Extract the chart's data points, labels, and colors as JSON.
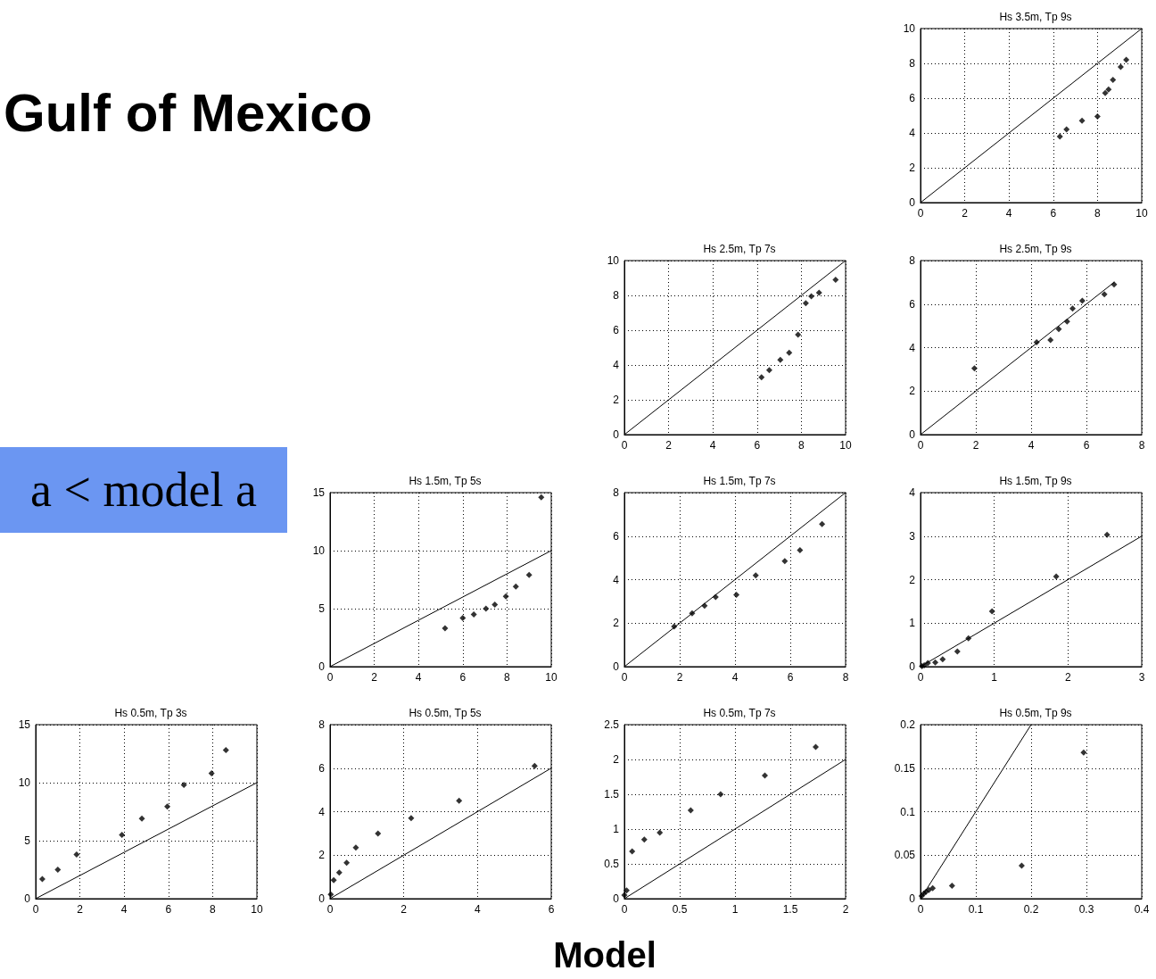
{
  "chart_data": [
    {
      "type": "other",
      "title": "Gulf of Mexico",
      "annotations": [
        "a < model a",
        "Model"
      ]
    },
    {
      "type": "scatter",
      "title": "Hs 3.5m, Tp 9s",
      "xlim": [
        0,
        10
      ],
      "ylim": [
        0,
        10
      ],
      "xticks": [
        0,
        2,
        4,
        6,
        8,
        10
      ],
      "yticks": [
        0,
        2,
        4,
        6,
        8,
        10
      ],
      "grid": true,
      "marker": "diamond",
      "series": [
        {
          "type": "scatter",
          "color": "#000000",
          "x": [
            6.3,
            6.6,
            7.3,
            8.0,
            8.35,
            8.5,
            8.7,
            9.05,
            9.3
          ],
          "values": [
            3.8,
            4.2,
            4.7,
            4.95,
            6.3,
            6.5,
            7.05,
            7.8,
            8.2
          ]
        },
        {
          "type": "line",
          "color": "#000000",
          "marker": "none",
          "x": [
            0,
            10
          ],
          "values": [
            0,
            10
          ]
        }
      ]
    },
    {
      "type": "scatter",
      "title": "Hs 2.5m, Tp 7s",
      "xlim": [
        0,
        10
      ],
      "ylim": [
        0,
        10
      ],
      "xticks": [
        0,
        2,
        4,
        6,
        8,
        10
      ],
      "yticks": [
        0,
        2,
        4,
        6,
        8,
        10
      ],
      "grid": true,
      "marker": "diamond",
      "series": [
        {
          "type": "scatter",
          "color": "#000000",
          "x": [
            6.2,
            6.55,
            7.05,
            7.45,
            7.85,
            8.2,
            8.45,
            8.8,
            9.55
          ],
          "values": [
            3.3,
            3.7,
            4.3,
            4.7,
            5.75,
            7.55,
            7.95,
            8.15,
            8.9
          ]
        },
        {
          "type": "line",
          "color": "#000000",
          "marker": "none",
          "x": [
            0,
            10
          ],
          "values": [
            0,
            10
          ]
        }
      ]
    },
    {
      "type": "scatter",
      "title": "Hs 2.5m, Tp 9s",
      "xlim": [
        0,
        8
      ],
      "ylim": [
        0,
        8
      ],
      "xticks": [
        0,
        2,
        4,
        6,
        8
      ],
      "yticks": [
        0,
        2,
        4,
        6,
        8
      ],
      "grid": true,
      "marker": "diamond",
      "series": [
        {
          "type": "scatter",
          "color": "#000000",
          "x": [
            1.95,
            4.2,
            4.7,
            5.0,
            5.3,
            5.5,
            5.85,
            6.65,
            7.0
          ],
          "values": [
            3.05,
            4.25,
            4.35,
            4.85,
            5.2,
            5.8,
            6.15,
            6.45,
            6.9
          ]
        },
        {
          "type": "line",
          "color": "#000000",
          "marker": "none",
          "x": [
            0,
            7
          ],
          "values": [
            0,
            7
          ]
        }
      ]
    },
    {
      "type": "scatter",
      "title": "Hs 1.5m, Tp 5s",
      "xlim": [
        0,
        10
      ],
      "ylim": [
        0,
        15
      ],
      "xticks": [
        0,
        2,
        4,
        6,
        8,
        10
      ],
      "yticks": [
        0,
        5,
        10,
        15
      ],
      "grid": true,
      "marker": "diamond",
      "series": [
        {
          "type": "scatter",
          "color": "#000000",
          "x": [
            5.2,
            6.0,
            6.5,
            7.05,
            7.45,
            7.95,
            8.4,
            9.0,
            9.55
          ],
          "values": [
            3.3,
            4.2,
            4.5,
            5.0,
            5.35,
            6.05,
            6.9,
            7.9,
            14.6
          ]
        },
        {
          "type": "line",
          "color": "#000000",
          "marker": "none",
          "x": [
            0,
            10
          ],
          "values": [
            0,
            10
          ]
        }
      ]
    },
    {
      "type": "scatter",
      "title": "Hs 1.5m, Tp 7s",
      "xlim": [
        0,
        8
      ],
      "ylim": [
        0,
        8
      ],
      "xticks": [
        0,
        2,
        4,
        6,
        8
      ],
      "yticks": [
        0,
        2,
        4,
        6,
        8
      ],
      "grid": true,
      "marker": "diamond",
      "series": [
        {
          "type": "scatter",
          "color": "#000000",
          "x": [
            1.8,
            2.45,
            2.9,
            3.3,
            4.05,
            4.75,
            5.8,
            6.35,
            7.15
          ],
          "values": [
            1.85,
            2.45,
            2.8,
            3.2,
            3.3,
            4.2,
            4.85,
            5.35,
            6.55
          ]
        },
        {
          "type": "line",
          "color": "#000000",
          "marker": "none",
          "x": [
            0,
            8
          ],
          "values": [
            0,
            8
          ]
        }
      ]
    },
    {
      "type": "scatter",
      "title": "Hs 1.5m, Tp 9s",
      "xlim": [
        0,
        3
      ],
      "ylim": [
        0,
        4
      ],
      "xticks": [
        0,
        1,
        2,
        3
      ],
      "yticks": [
        0,
        1,
        2,
        3,
        4
      ],
      "grid": true,
      "marker": "diamond",
      "series": [
        {
          "type": "scatter",
          "color": "#000000",
          "x": [
            0.02,
            0.05,
            0.1,
            0.2,
            0.3,
            0.5,
            0.65,
            0.97,
            1.84,
            2.53
          ],
          "values": [
            0.01,
            0.03,
            0.08,
            0.1,
            0.17,
            0.35,
            0.65,
            1.27,
            2.07,
            3.03
          ]
        },
        {
          "type": "line",
          "color": "#000000",
          "marker": "none",
          "x": [
            0,
            3
          ],
          "values": [
            0,
            3
          ]
        }
      ]
    },
    {
      "type": "scatter",
      "title": "Hs 0.5m, Tp 3s",
      "xlim": [
        0,
        10
      ],
      "ylim": [
        0,
        15
      ],
      "xticks": [
        0,
        2,
        4,
        6,
        8,
        10
      ],
      "yticks": [
        0,
        5,
        10,
        15
      ],
      "grid": true,
      "marker": "diamond",
      "series": [
        {
          "type": "scatter",
          "color": "#000000",
          "x": [
            0.3,
            1.0,
            1.85,
            3.9,
            4.8,
            5.95,
            6.7,
            7.95,
            8.6
          ],
          "values": [
            1.7,
            2.5,
            3.8,
            5.5,
            6.9,
            7.95,
            9.8,
            10.8,
            12.8
          ]
        },
        {
          "type": "line",
          "color": "#000000",
          "marker": "none",
          "x": [
            0,
            10
          ],
          "values": [
            0,
            10
          ]
        }
      ]
    },
    {
      "type": "scatter",
      "title": "Hs 0.5m, Tp 5s",
      "xlim": [
        0,
        6
      ],
      "ylim": [
        0,
        8
      ],
      "xticks": [
        0,
        2,
        4,
        6
      ],
      "yticks": [
        0,
        2,
        4,
        6,
        8
      ],
      "grid": true,
      "marker": "diamond",
      "series": [
        {
          "type": "scatter",
          "color": "#000000",
          "x": [
            0.02,
            0.1,
            0.25,
            0.45,
            0.7,
            1.3,
            2.2,
            3.5,
            5.55
          ],
          "values": [
            0.2,
            0.85,
            1.2,
            1.65,
            2.35,
            3.0,
            3.7,
            4.5,
            6.1
          ]
        },
        {
          "type": "line",
          "color": "#000000",
          "marker": "none",
          "x": [
            0,
            6
          ],
          "values": [
            0,
            6
          ]
        }
      ]
    },
    {
      "type": "scatter",
      "title": "Hs 0.5m, Tp 7s",
      "xlim": [
        0,
        2
      ],
      "ylim": [
        0,
        2.5
      ],
      "xticks": [
        0,
        0.5,
        1,
        1.5,
        2
      ],
      "yticks": [
        0,
        0.5,
        1,
        1.5,
        2,
        2.5
      ],
      "grid": true,
      "marker": "diamond",
      "series": [
        {
          "type": "scatter",
          "color": "#000000",
          "x": [
            0.0,
            0.02,
            0.07,
            0.18,
            0.32,
            0.6,
            0.87,
            1.27,
            1.73
          ],
          "values": [
            0.05,
            0.12,
            0.68,
            0.85,
            0.95,
            1.27,
            1.5,
            1.77,
            2.18
          ]
        },
        {
          "type": "line",
          "color": "#000000",
          "marker": "none",
          "x": [
            0,
            2
          ],
          "values": [
            0,
            2
          ]
        }
      ]
    },
    {
      "type": "scatter",
      "title": "Hs 0.5m, Tp 9s",
      "xlim": [
        0,
        0.4
      ],
      "ylim": [
        0,
        0.2
      ],
      "xticks": [
        0,
        0.1,
        0.2,
        0.3,
        0.4
      ],
      "yticks": [
        0,
        0.05,
        0.1,
        0.15,
        0.2
      ],
      "grid": true,
      "marker": "diamond",
      "series": [
        {
          "type": "scatter",
          "color": "#000000",
          "x": [
            0.002,
            0.006,
            0.01,
            0.015,
            0.022,
            0.057,
            0.183,
            0.295
          ],
          "values": [
            0.003,
            0.006,
            0.008,
            0.01,
            0.012,
            0.015,
            0.038,
            0.168
          ]
        },
        {
          "type": "line",
          "color": "#000000",
          "marker": "none",
          "x": [
            0,
            0.2
          ],
          "values": [
            0,
            0.2
          ]
        }
      ]
    }
  ]
}
